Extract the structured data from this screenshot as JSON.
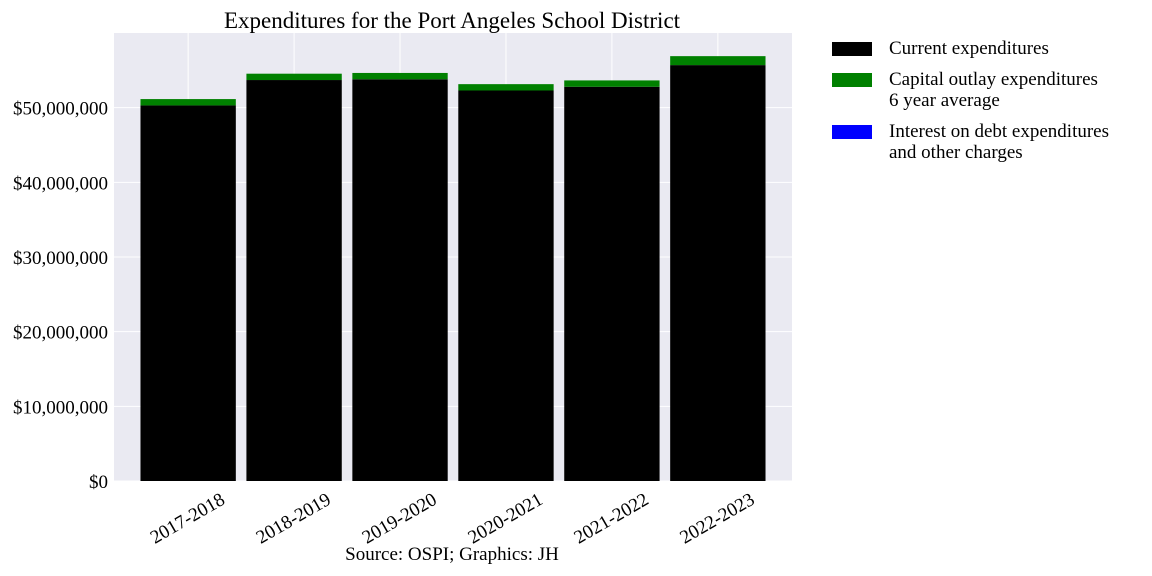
{
  "chart_data": {
    "type": "bar",
    "stacked": true,
    "title": "Expenditures for the Port Angeles School District",
    "caption": "Source: OSPI; Graphics: JH",
    "xlabel": "",
    "ylabel": "",
    "ylim": [
      0,
      60000000
    ],
    "y_ticks": [
      0,
      10000000,
      20000000,
      30000000,
      40000000,
      50000000
    ],
    "y_tick_labels": [
      "$0",
      "$10,000,000",
      "$20,000,000",
      "$30,000,000",
      "$40,000,000",
      "$50,000,000"
    ],
    "categories": [
      "2017-2018",
      "2018-2019",
      "2019-2020",
      "2020-2021",
      "2021-2022",
      "2022-2023"
    ],
    "series": [
      {
        "name": "Current expenditures",
        "color": "#000000",
        "values": [
          50300000,
          53700000,
          53800000,
          52300000,
          52800000,
          55700000
        ]
      },
      {
        "name": "Capital outlay expenditures\n6 year average",
        "color": "#008000",
        "values": [
          850000,
          850000,
          850000,
          850000,
          850000,
          1200000
        ]
      },
      {
        "name": "Interest on debt expenditures\nand other charges",
        "color": "#0000ff",
        "values": [
          0,
          0,
          0,
          0,
          0,
          0
        ]
      }
    ],
    "grid": true,
    "legend_position": "outside-right-top"
  }
}
